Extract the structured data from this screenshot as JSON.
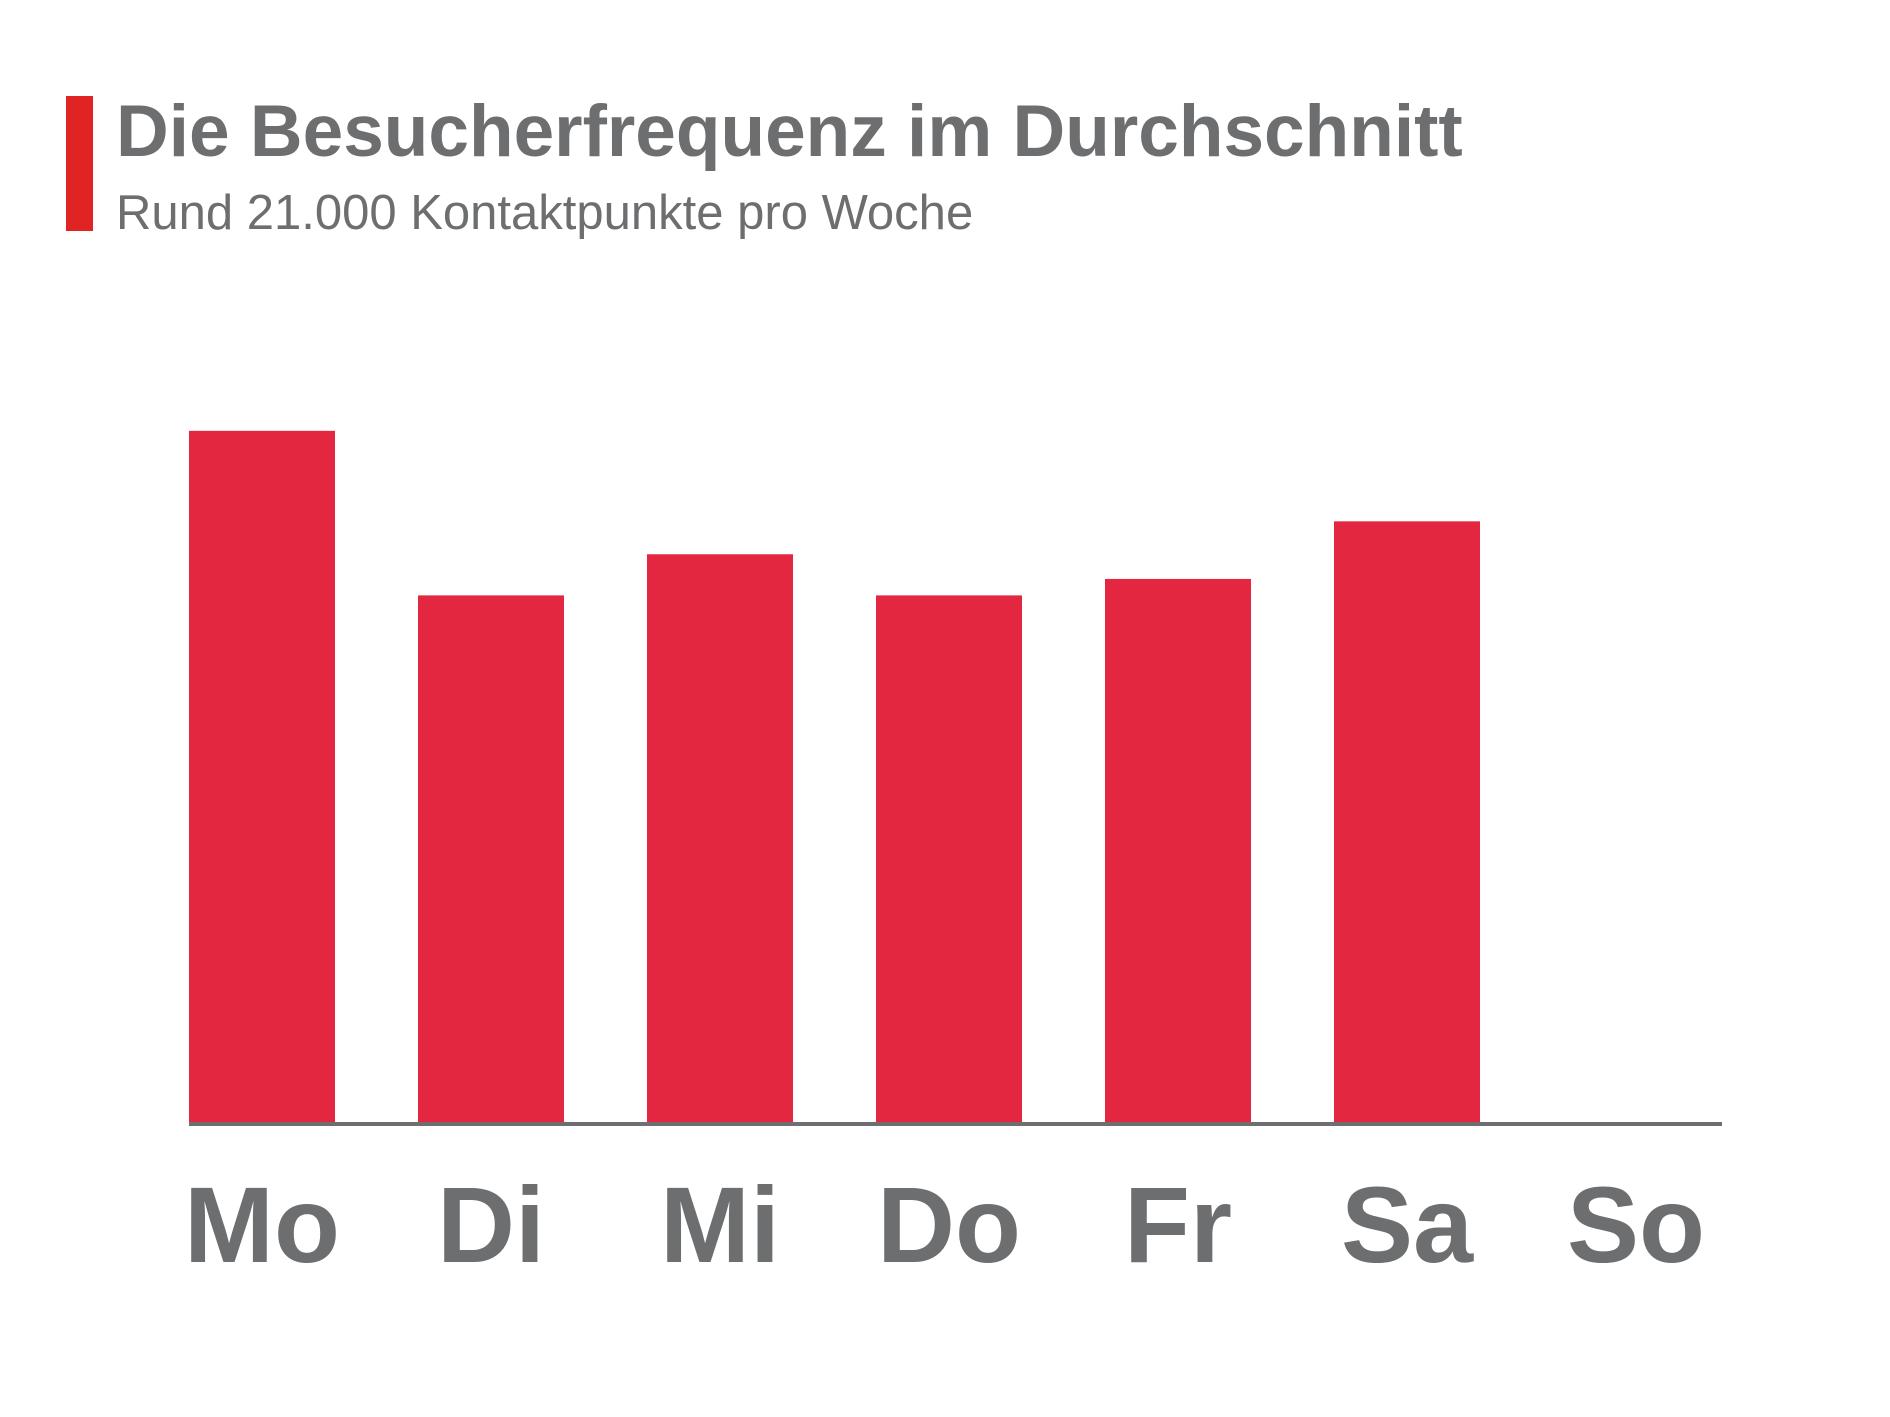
{
  "chart_data": {
    "type": "bar",
    "title": "Die Besucherfrequenz im Durchschnitt",
    "subtitle": "Rund 21.000 Kontaktpunkte pro Woche",
    "categories": [
      "Mo",
      "Di",
      "Mi",
      "Do",
      "Fr",
      "Sa",
      "So"
    ],
    "values": [
      4200,
      3200,
      3450,
      3200,
      3300,
      3650,
      0
    ],
    "color": "#e42741",
    "ylim": [
      0,
      4600
    ]
  }
}
